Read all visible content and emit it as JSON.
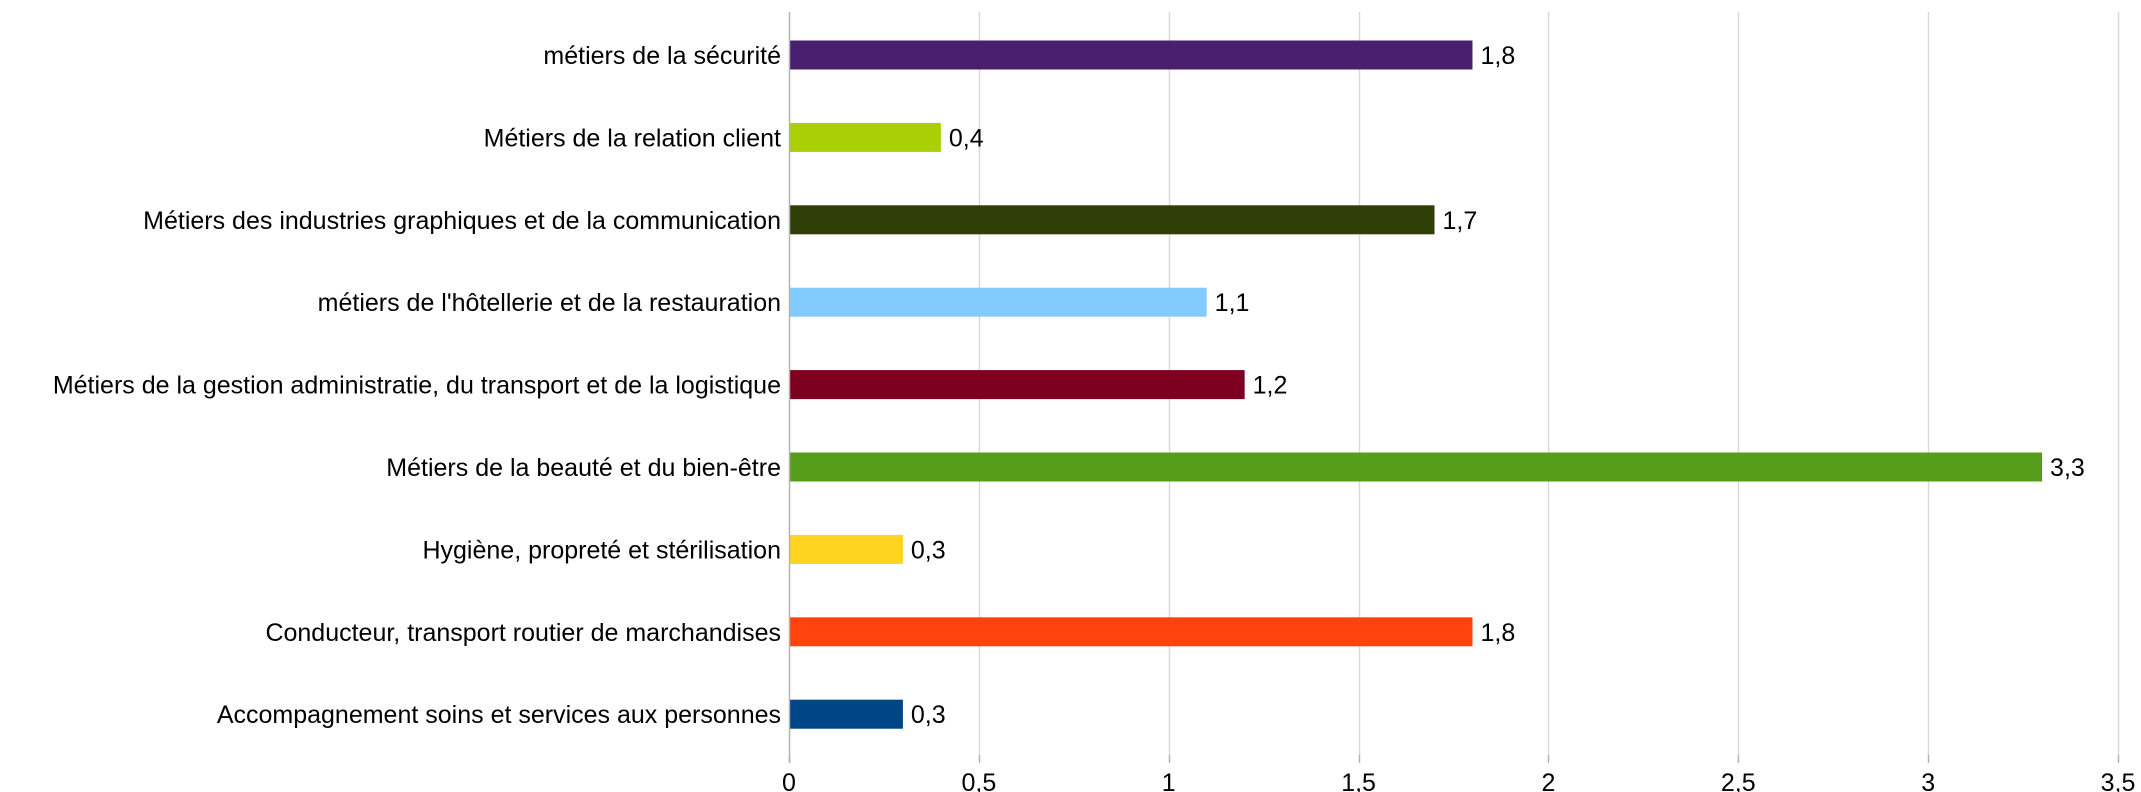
{
  "chart_data": {
    "type": "bar",
    "orientation": "horizontal",
    "title": "",
    "xlabel": "",
    "ylabel": "",
    "xlim": [
      0,
      3.5
    ],
    "x_ticks": [
      0,
      0.5,
      1,
      1.5,
      2,
      2.5,
      3,
      3.5
    ],
    "x_tick_labels": [
      "0",
      "0,5",
      "1",
      "1,5",
      "2",
      "2,5",
      "3",
      "3,5"
    ],
    "grid": "vertical",
    "legend": "none",
    "categories": [
      "métiers de la sécurité",
      "Métiers de la relation client",
      "Métiers des industries graphiques et de la communication",
      "métiers de l'hôtellerie et de la restauration",
      "Métiers de la gestion administratie, du transport et de la logistique",
      "Métiers de la beauté et du bien-être",
      "Hygiène, propreté et stérilisation",
      "Conducteur, transport routier de marchandises",
      "Accompagnement soins et services aux personnes"
    ],
    "values": [
      1.8,
      0.4,
      1.7,
      1.1,
      1.2,
      3.3,
      0.3,
      1.8,
      0.3
    ],
    "value_labels": [
      "1,8",
      "0,4",
      "1,7",
      "1,1",
      "1,2",
      "3,3",
      "0,3",
      "1,8",
      "0,3"
    ],
    "colors": [
      "#4b1f6f",
      "#aacf04",
      "#2e3e06",
      "#83caff",
      "#7e0021",
      "#579d1c",
      "#ffd320",
      "#ff420e",
      "#004586"
    ],
    "grid_color": "#d9d9d9",
    "axis_color": "#b3b3b3"
  }
}
